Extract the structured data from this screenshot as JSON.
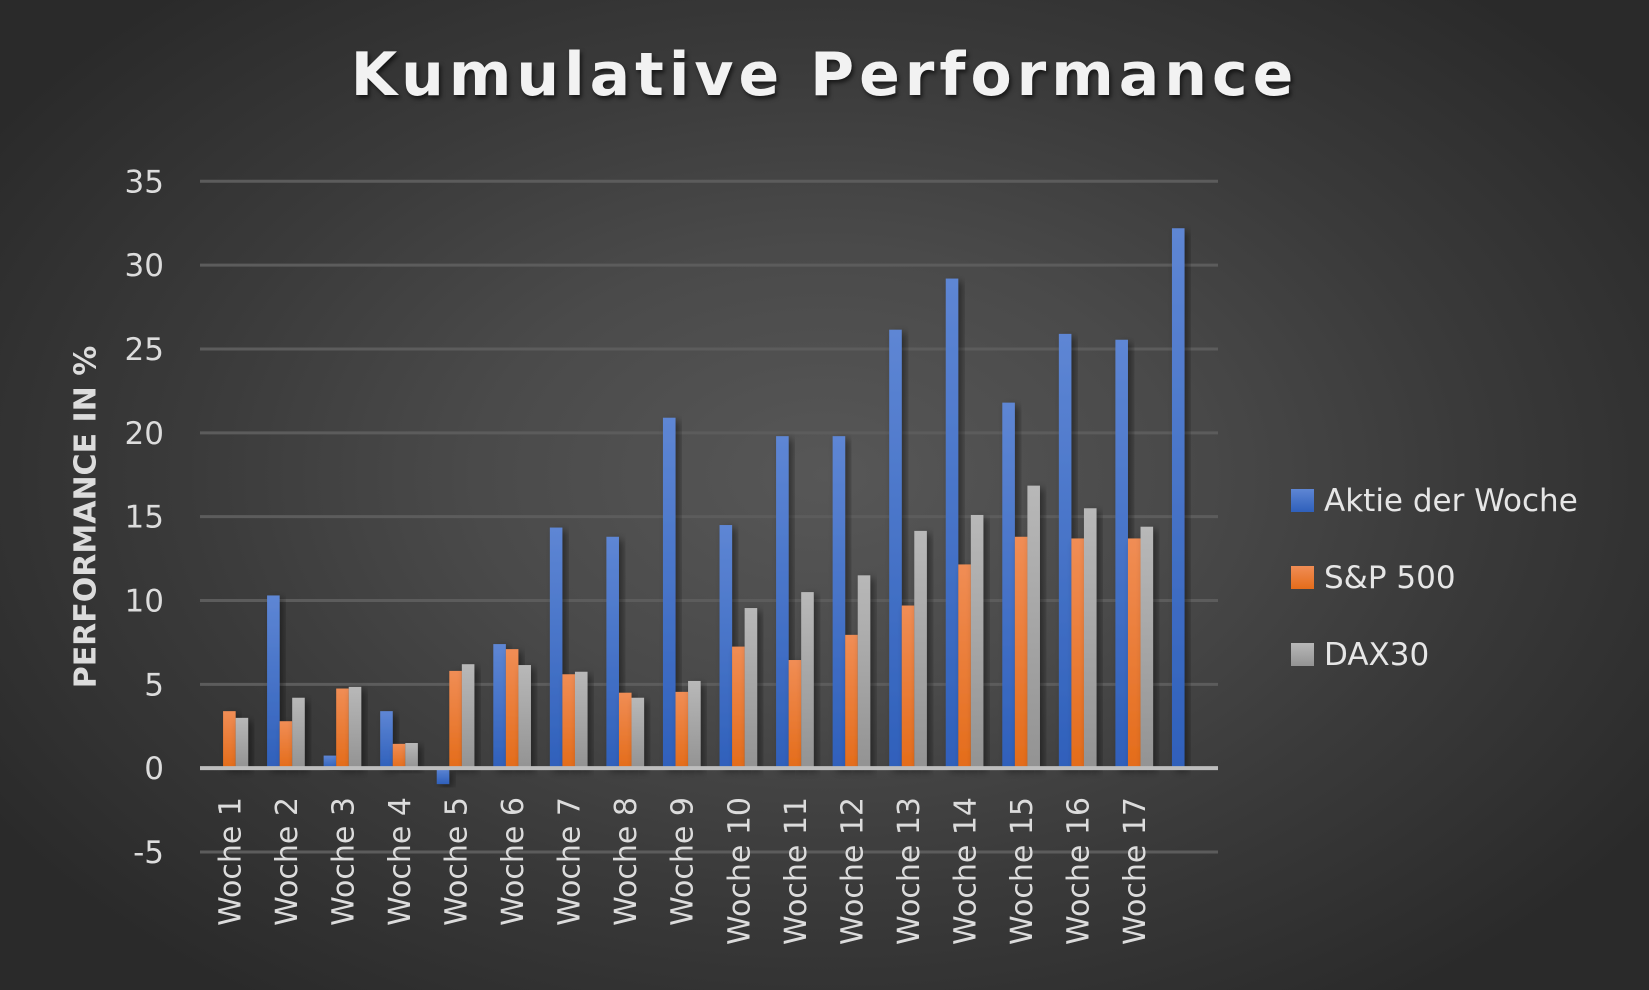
{
  "chart_data": {
    "type": "bar",
    "title": "Kumulative Performance",
    "xlabel": "",
    "ylabel": "PERFORMANCE IN %",
    "ylim": [
      -5,
      35
    ],
    "yticks": [
      35,
      30,
      25,
      20,
      15,
      10,
      5,
      0,
      -5
    ],
    "grid": true,
    "legend_position": "right",
    "categories": [
      "Woche 1",
      "Woche 2",
      "Woche 3",
      "Woche 4",
      "Woche 5",
      "Woche 6",
      "Woche 7",
      "Woche 8",
      "Woche 9",
      "Woche 10",
      "Woche 11",
      "Woche 12",
      "Woche 13",
      "Woche 14",
      "Woche 15",
      "Woche 16",
      "Woche 17",
      ""
    ],
    "series": [
      {
        "name": "Aktie der Woche",
        "color": "#4472C4",
        "values": [
          0,
          10.3,
          0.75,
          3.4,
          -0.95,
          7.4,
          14.35,
          13.8,
          20.9,
          14.5,
          19.8,
          19.8,
          26.15,
          29.2,
          21.8,
          25.9,
          25.55,
          32.2
        ]
      },
      {
        "name": "S&P 500",
        "color": "#ED7D31",
        "values": [
          3.4,
          2.8,
          4.75,
          1.45,
          5.8,
          7.1,
          5.6,
          4.5,
          4.55,
          7.25,
          6.45,
          7.95,
          9.7,
          12.15,
          13.8,
          13.7,
          13.7,
          null
        ]
      },
      {
        "name": "DAX30",
        "color": "#A5A5A5",
        "values": [
          3.0,
          4.2,
          4.85,
          1.5,
          6.2,
          6.15,
          5.75,
          4.2,
          5.2,
          9.55,
          10.5,
          11.5,
          14.15,
          15.1,
          16.85,
          15.5,
          14.4,
          null
        ]
      }
    ]
  },
  "legend": {
    "items": [
      {
        "label": "Aktie der Woche",
        "color": "#4472C4"
      },
      {
        "label": "S&P 500",
        "color": "#ED7D31"
      },
      {
        "label": "DAX30",
        "color": "#A5A5A5"
      }
    ]
  }
}
